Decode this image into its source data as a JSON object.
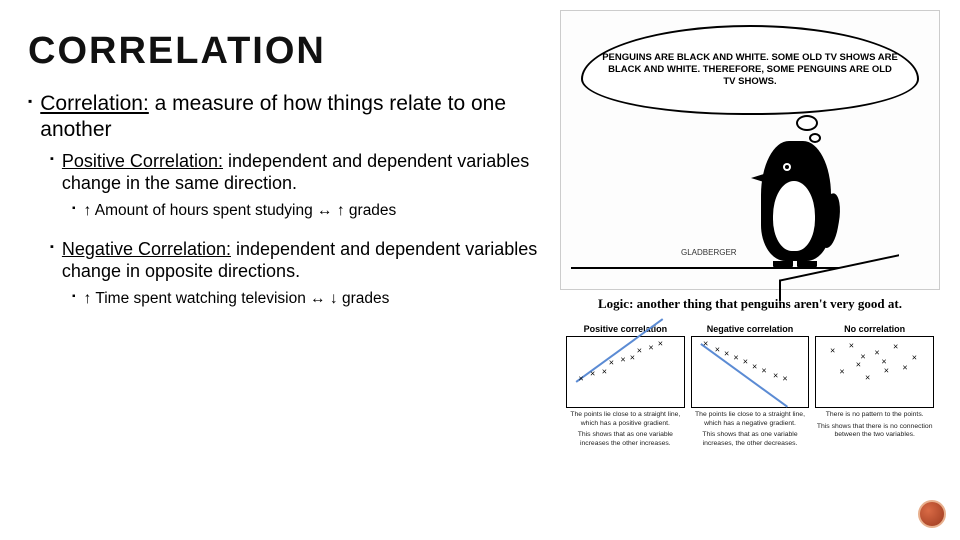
{
  "title": "CORRELATION",
  "bullets": {
    "l1": {
      "term": "Correlation:",
      "rest": " a measure of how things relate to one another"
    },
    "pos": {
      "term": "Positive Correlation:",
      "rest": " independent and dependent variables change in the same direction."
    },
    "pos_ex": "↑ Amount of hours spent studying ↔  ↑ grades",
    "neg": {
      "term": "Negative Correlation:",
      "rest": " independent and dependent variables change in opposite directions."
    },
    "neg_ex": "↑ Time spent watching television ↔ ↓ grades"
  },
  "cartoon": {
    "bubble_text": "PENGUINS ARE BLACK AND WHITE. SOME OLD TV SHOWS ARE BLACK AND WHITE. THEREFORE, SOME PENGUINS ARE OLD TV SHOWS.",
    "signature": "GLADBERGER",
    "caption": "Logic: another thing that penguins aren't very good at."
  },
  "charts": {
    "positive": {
      "title": "Positive correlation",
      "points": [
        [
          12,
          60
        ],
        [
          22,
          52
        ],
        [
          32,
          49
        ],
        [
          38,
          37
        ],
        [
          48,
          32
        ],
        [
          56,
          30
        ],
        [
          62,
          20
        ],
        [
          72,
          16
        ],
        [
          80,
          9
        ]
      ],
      "line": {
        "x": 8,
        "y": 62,
        "len": 92,
        "angle": -36
      },
      "desc1": "The points lie close to a straight line, which has a positive gradient.",
      "desc2": "This shows that as one variable increases the other increases."
    },
    "negative": {
      "title": "Negative correlation",
      "points": [
        [
          12,
          10
        ],
        [
          22,
          18
        ],
        [
          30,
          24
        ],
        [
          38,
          30
        ],
        [
          46,
          36
        ],
        [
          54,
          42
        ],
        [
          62,
          48
        ],
        [
          72,
          56
        ],
        [
          80,
          60
        ]
      ],
      "line": {
        "x": 8,
        "y": 8,
        "len": 92,
        "angle": 36
      },
      "desc1": "The points lie close to a straight line, which has a negative gradient.",
      "desc2": "This shows that as one variable increases, the other decreases."
    },
    "none": {
      "title": "No correlation",
      "points": [
        [
          14,
          20
        ],
        [
          22,
          50
        ],
        [
          30,
          12
        ],
        [
          36,
          40
        ],
        [
          44,
          58
        ],
        [
          52,
          22
        ],
        [
          60,
          48
        ],
        [
          68,
          14
        ],
        [
          76,
          44
        ],
        [
          84,
          30
        ],
        [
          40,
          28
        ],
        [
          58,
          36
        ]
      ],
      "desc1": "There is no pattern to the points.",
      "desc2": "This shows that there is no connection between the two variables."
    }
  },
  "colors": {
    "text": "#000000",
    "background": "#ffffff",
    "chart_line": "#5b8bd4",
    "badge_outer": "#e8b08e",
    "badge_inner1": "#d96a45",
    "badge_inner2": "#9c3a1f"
  }
}
